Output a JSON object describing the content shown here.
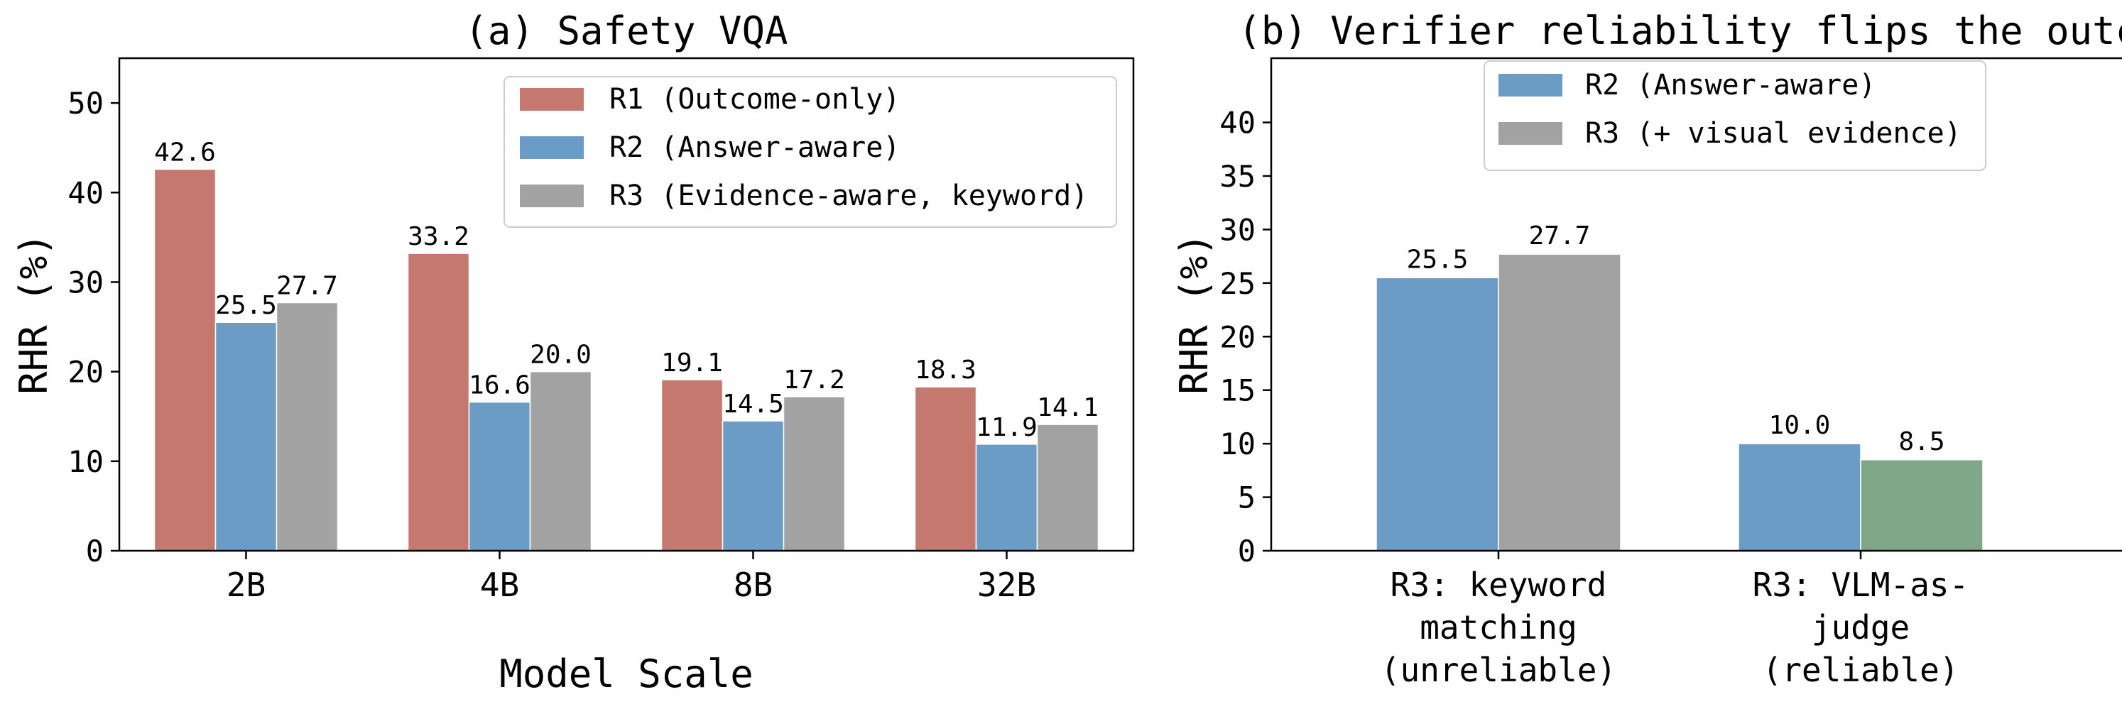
{
  "chart_data": [
    {
      "type": "bar",
      "title": "(a) Safety VQA",
      "xlabel": "Model Scale",
      "ylabel": "RHR (%)",
      "ylim": [
        0,
        55
      ],
      "yticks": [
        0,
        10,
        20,
        30,
        40,
        50
      ],
      "categories": [
        "2B",
        "4B",
        "8B",
        "32B"
      ],
      "series": [
        {
          "name": "R1 (Outcome-only)",
          "color": "#c4786e",
          "values": [
            42.6,
            33.2,
            19.1,
            18.3
          ],
          "labels": [
            "42.6",
            "33.2",
            "19.1",
            "18.3"
          ]
        },
        {
          "name": "R2 (Answer-aware)",
          "color": "#6a9cc6",
          "values": [
            25.5,
            16.6,
            14.5,
            11.9
          ],
          "labels": [
            "25.5",
            "16.6",
            "14.5",
            "11.9"
          ]
        },
        {
          "name": "R3 (Evidence-aware, keyword)",
          "color": "#a2a2a2",
          "values": [
            27.7,
            20.0,
            17.2,
            14.1
          ],
          "labels": [
            "27.7",
            "20.0",
            "17.2",
            "14.1"
          ]
        }
      ],
      "legend": {
        "position": "top-right",
        "entries": [
          "R1 (Outcome-only)",
          "R2 (Answer-aware)",
          "R3 (Evidence-aware, keyword)"
        ]
      },
      "grid": false
    },
    {
      "type": "bar",
      "title": "(b) Verifier reliability flips the outcome",
      "xlabel": "",
      "ylabel": "RHR (%)",
      "ylim": [
        0,
        46
      ],
      "yticks": [
        0,
        5,
        10,
        15,
        20,
        25,
        30,
        35,
        40
      ],
      "categories": [
        [
          "R3: keyword",
          "matching",
          "(unreliable)"
        ],
        [
          "R3: VLM-as-",
          "judge",
          "(reliable)"
        ]
      ],
      "bars": [
        [
          {
            "value": 25.5,
            "label": "25.5",
            "color": "#6a9cc6"
          },
          {
            "value": 27.7,
            "label": "27.7",
            "color": "#a2a2a2"
          }
        ],
        [
          {
            "value": 10.0,
            "label": "10.0",
            "color": "#6a9cc6"
          },
          {
            "value": 8.5,
            "label": "8.5",
            "color": "#7fa888"
          }
        ]
      ],
      "legend": {
        "position": "top-right",
        "entries": [
          {
            "name": "R2 (Answer-aware)",
            "color": "#6a9cc6"
          },
          {
            "name": "R3 (+ visual evidence)",
            "color": "#a2a2a2"
          }
        ]
      },
      "grid": false
    }
  ]
}
